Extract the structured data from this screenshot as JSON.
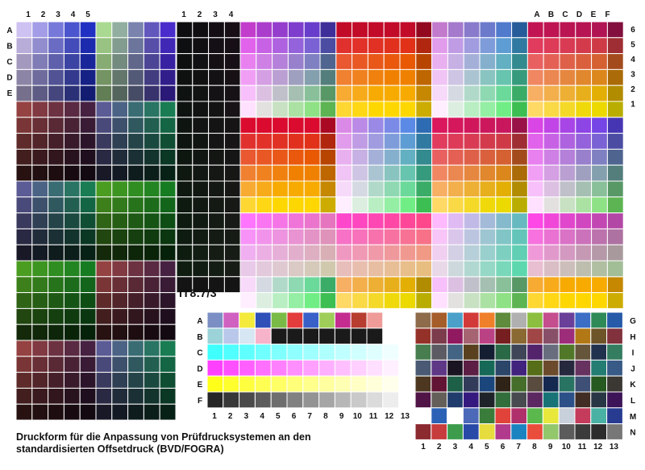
{
  "title": "IT8.7/3",
  "caption_line1": "Druckform für die Anpassung von Prüfdrucksystemen an den",
  "caption_line2": "standardisierten Offsetdruck (BVD/FOGRA)",
  "labels": {
    "top_left_cols": [
      "1",
      "2",
      "3",
      "4",
      "5"
    ],
    "top_mid_cols": [
      "1",
      "2",
      "3",
      "4"
    ],
    "left_rows": [
      "A",
      "B",
      "C",
      "D",
      "E"
    ],
    "top_right_cols": [
      "A",
      "B",
      "C",
      "D",
      "E",
      "F"
    ],
    "right_rows": [
      "6",
      "5",
      "4",
      "3",
      "2",
      "1"
    ],
    "bottom_left_rows": [
      "A",
      "B",
      "C",
      "D",
      "E",
      "F"
    ],
    "bottom_right_rows": [
      "G",
      "H",
      "I",
      "J",
      "K",
      "L",
      "M",
      "N"
    ],
    "bottom_cols": [
      "1",
      "2",
      "3",
      "4",
      "5",
      "6",
      "7",
      "8",
      "9",
      "10",
      "11",
      "12",
      "13"
    ]
  },
  "colors": {
    "background": "#ffffff",
    "grid_line": "#ffffff",
    "label": "#111111"
  }
}
